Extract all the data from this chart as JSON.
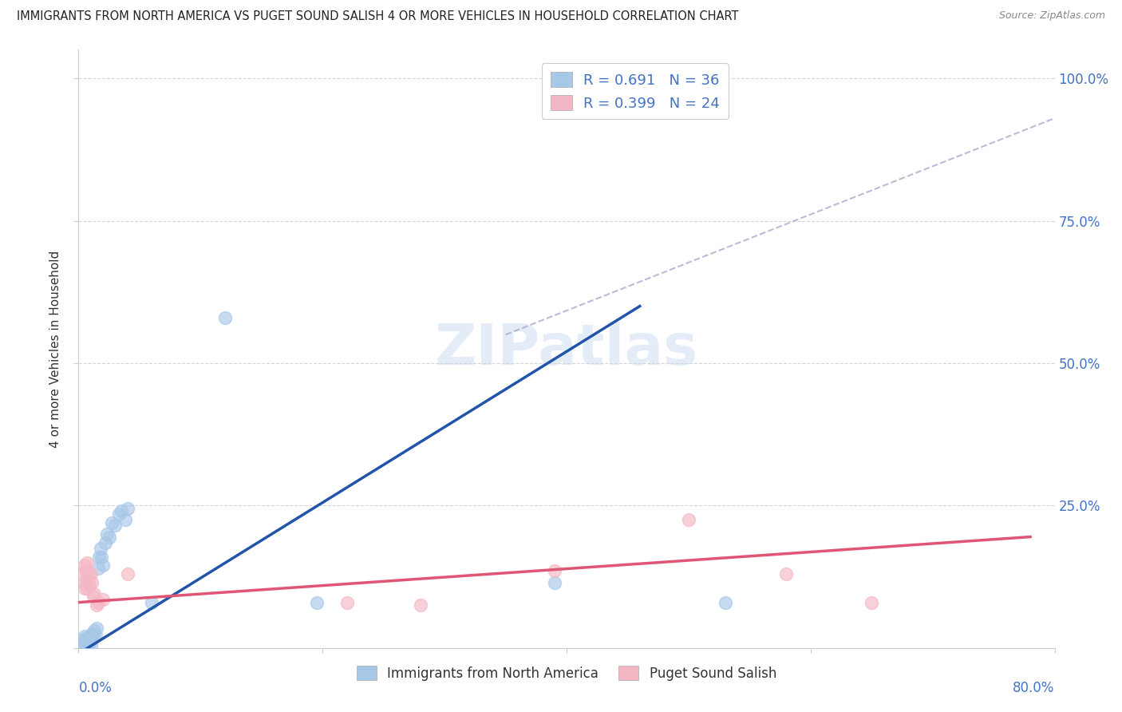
{
  "title": "IMMIGRANTS FROM NORTH AMERICA VS PUGET SOUND SALISH 4 OR MORE VEHICLES IN HOUSEHOLD CORRELATION CHART",
  "source": "Source: ZipAtlas.com",
  "ylabel": "4 or more Vehicles in Household",
  "watermark": "ZIPatlas",
  "blue_R": 0.691,
  "blue_N": 36,
  "pink_R": 0.399,
  "pink_N": 24,
  "blue_color": "#a8c8e8",
  "pink_color": "#f4b8c4",
  "blue_line_color": "#2255aa",
  "pink_line_color": "#e05575",
  "blue_scatter": [
    [
      0.003,
      0.01
    ],
    [
      0.004,
      0.015
    ],
    [
      0.005,
      0.02
    ],
    [
      0.005,
      0.005
    ],
    [
      0.006,
      0.008
    ],
    [
      0.006,
      0.015
    ],
    [
      0.007,
      0.01
    ],
    [
      0.008,
      0.01
    ],
    [
      0.008,
      0.005
    ],
    [
      0.009,
      0.02
    ],
    [
      0.01,
      0.015
    ],
    [
      0.01,
      0.005
    ],
    [
      0.011,
      0.025
    ],
    [
      0.012,
      0.02
    ],
    [
      0.013,
      0.03
    ],
    [
      0.014,
      0.022
    ],
    [
      0.015,
      0.035
    ],
    [
      0.016,
      0.14
    ],
    [
      0.017,
      0.16
    ],
    [
      0.018,
      0.175
    ],
    [
      0.019,
      0.16
    ],
    [
      0.02,
      0.145
    ],
    [
      0.022,
      0.185
    ],
    [
      0.023,
      0.2
    ],
    [
      0.025,
      0.195
    ],
    [
      0.027,
      0.22
    ],
    [
      0.03,
      0.215
    ],
    [
      0.033,
      0.235
    ],
    [
      0.035,
      0.24
    ],
    [
      0.038,
      0.225
    ],
    [
      0.04,
      0.245
    ],
    [
      0.06,
      0.08
    ],
    [
      0.12,
      0.58
    ],
    [
      0.195,
      0.08
    ],
    [
      0.39,
      0.115
    ],
    [
      0.53,
      0.08
    ]
  ],
  "pink_scatter": [
    [
      0.003,
      0.13
    ],
    [
      0.004,
      0.115
    ],
    [
      0.005,
      0.145
    ],
    [
      0.005,
      0.105
    ],
    [
      0.006,
      0.135
    ],
    [
      0.006,
      0.12
    ],
    [
      0.007,
      0.15
    ],
    [
      0.007,
      0.105
    ],
    [
      0.008,
      0.125
    ],
    [
      0.009,
      0.11
    ],
    [
      0.01,
      0.13
    ],
    [
      0.011,
      0.115
    ],
    [
      0.012,
      0.09
    ],
    [
      0.013,
      0.095
    ],
    [
      0.015,
      0.075
    ],
    [
      0.016,
      0.08
    ],
    [
      0.02,
      0.085
    ],
    [
      0.04,
      0.13
    ],
    [
      0.22,
      0.08
    ],
    [
      0.28,
      0.075
    ],
    [
      0.39,
      0.135
    ],
    [
      0.5,
      0.225
    ],
    [
      0.58,
      0.13
    ],
    [
      0.65,
      0.08
    ]
  ],
  "xlim": [
    0.0,
    0.8
  ],
  "ylim": [
    0.0,
    1.05
  ],
  "x_axis_ticks": [
    0.0,
    0.2,
    0.4,
    0.6,
    0.8
  ],
  "y_axis_ticks": [
    0.0,
    0.25,
    0.5,
    0.75,
    1.0
  ],
  "y_tick_labels_right": [
    "",
    "25.0%",
    "50.0%",
    "75.0%",
    "100.0%"
  ],
  "legend_blue_label": "R = 0.691   N = 36",
  "legend_pink_label": "R = 0.399   N = 24",
  "bottom_legend_blue": "Immigrants from North America",
  "bottom_legend_pink": "Puget Sound Salish",
  "dashed_line": [
    [
      0.35,
      0.55
    ],
    [
      0.8,
      0.93
    ]
  ],
  "blue_line_manual": [
    [
      0.0,
      -0.01
    ],
    [
      0.46,
      0.6
    ]
  ],
  "pink_line_manual": [
    [
      0.0,
      0.08
    ],
    [
      0.78,
      0.195
    ]
  ]
}
